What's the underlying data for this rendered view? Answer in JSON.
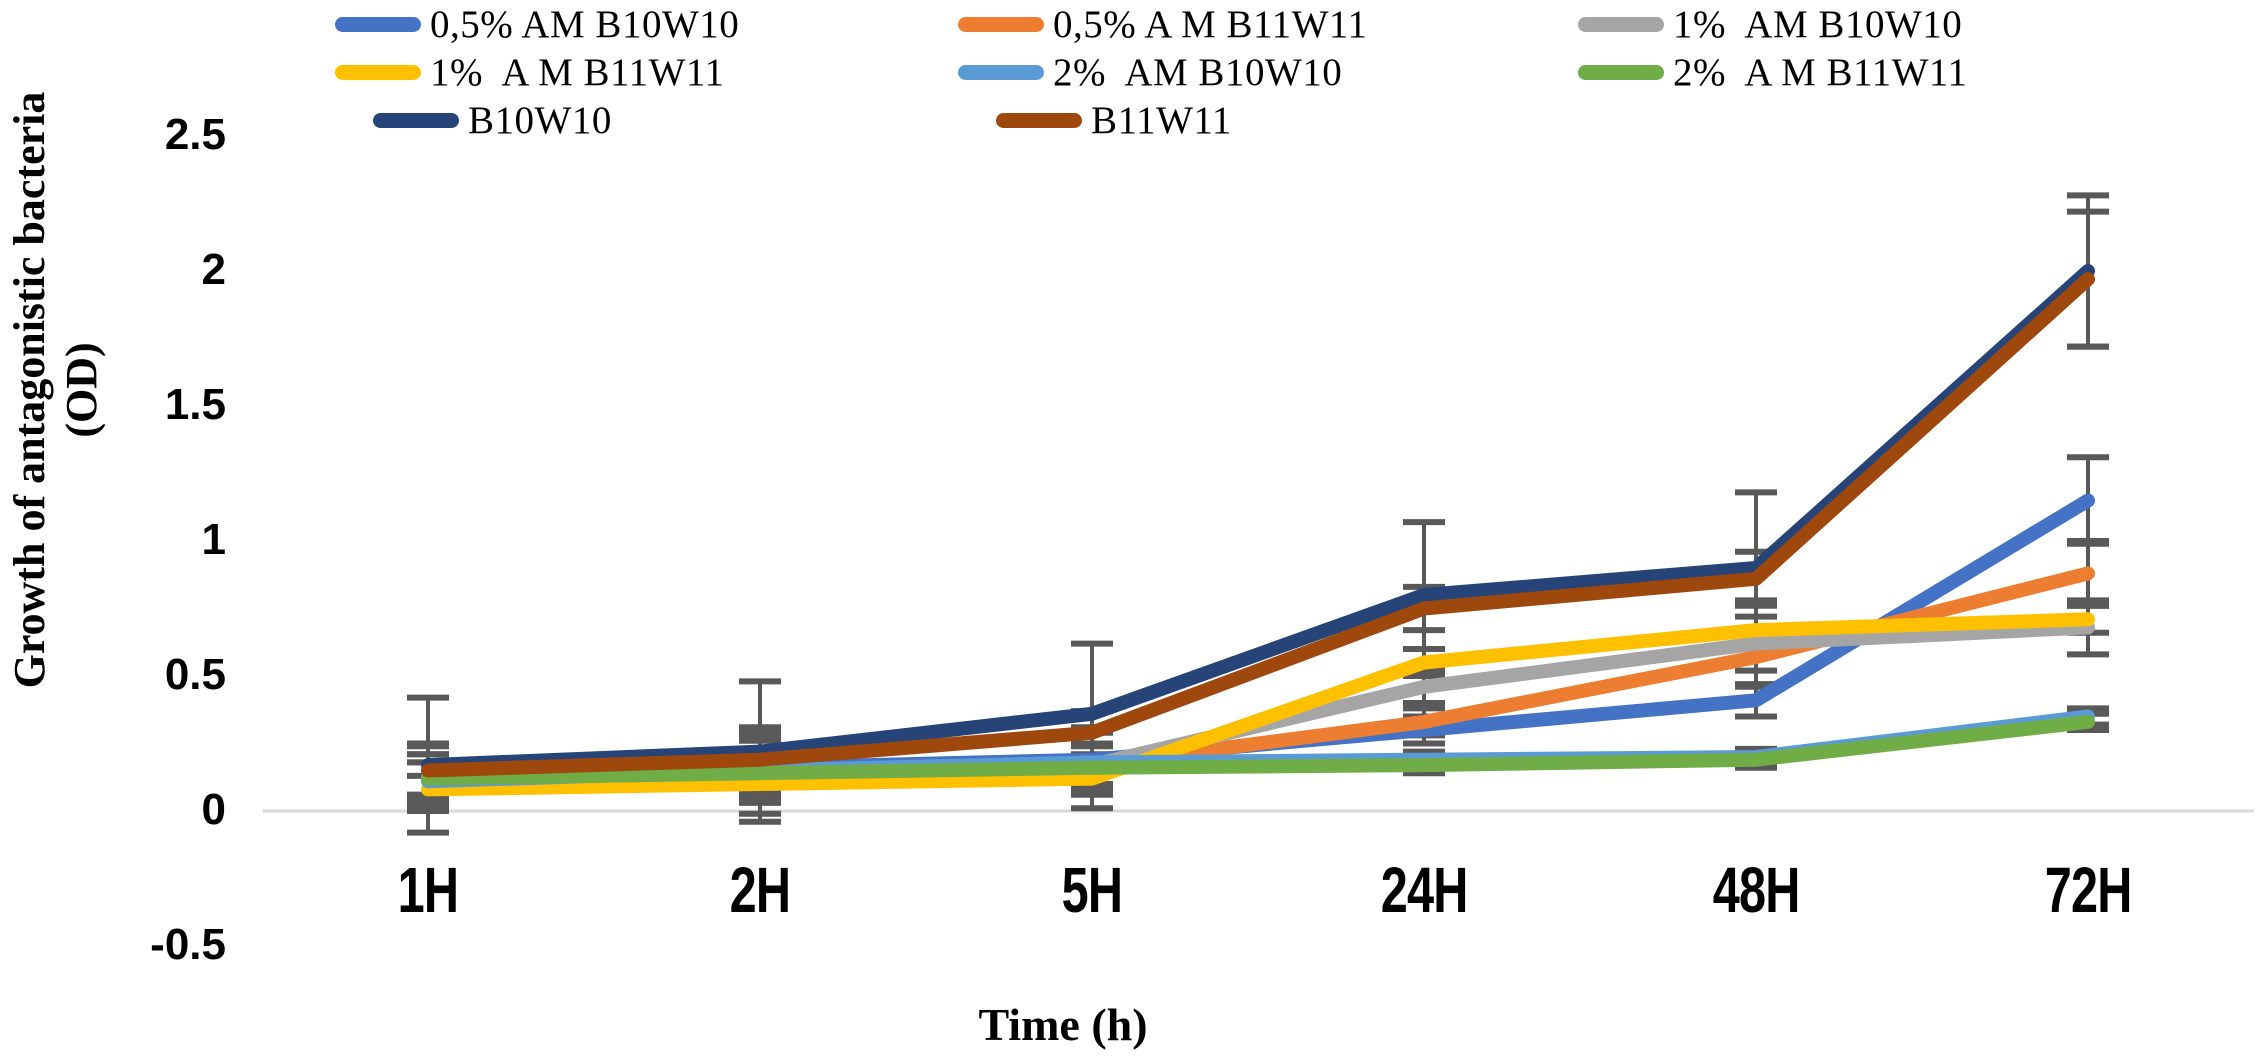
{
  "figure": {
    "y_axis_title_line1": "Growth of antagonistic bacteria",
    "y_axis_title_line2": "(OD)",
    "x_axis_title": "Time (h)"
  },
  "colors": {
    "background": "#FFFFFF",
    "zero_line": "#D9D9D9",
    "error_bar": "#595959",
    "text": "#000000"
  },
  "chart_data": {
    "type": "line",
    "title": "",
    "xlabel": "Time (h)",
    "ylabel": "Growth of antagonistic bacteria (OD)",
    "categories": [
      "1H",
      "2H",
      "5H",
      "24H",
      "48H",
      "72H"
    ],
    "x_values_hours": [
      1,
      2,
      5,
      24,
      48,
      72
    ],
    "ylim": [
      -0.5,
      2.5
    ],
    "y_ticks": [
      "2.5",
      "2",
      "1.5",
      "1",
      "0.5",
      "0",
      "-0.5"
    ],
    "y_tick_values": [
      2.5,
      2,
      1.5,
      1,
      0.5,
      0,
      -0.5
    ],
    "grid": false,
    "legend_position": "top",
    "legend_columns": 3,
    "error_bars": true,
    "series": [
      {
        "name": "0,5% AM B10W10",
        "color": "#4472C4",
        "values": [
          0.13,
          0.16,
          0.19,
          0.3,
          0.41,
          1.15
        ],
        "errors": [
          0.08,
          0.1,
          0.1,
          0.05,
          0.06,
          0.16
        ]
      },
      {
        "name": "0,5% A M B11W11",
        "color": "#ED7D31",
        "values": [
          0.12,
          0.14,
          0.17,
          0.33,
          0.57,
          0.88
        ],
        "errors": [
          0.06,
          0.08,
          0.08,
          0.05,
          0.05,
          0.12
        ]
      },
      {
        "name": "1%  AM B10W10",
        "color": "#A5A5A5",
        "values": [
          0.12,
          0.14,
          0.17,
          0.46,
          0.62,
          0.68
        ],
        "errors": [
          0.06,
          0.07,
          0.07,
          0.06,
          0.16,
          0.1
        ]
      },
      {
        "name": "1%  A M B11W11",
        "color": "#FFC000",
        "values": [
          0.08,
          0.1,
          0.12,
          0.55,
          0.67,
          0.71
        ],
        "errors": [
          0.05,
          0.06,
          0.05,
          0.05,
          0.05,
          0.05
        ]
      },
      {
        "name": "2%  AM B10W10",
        "color": "#5B9BD5",
        "values": [
          0.11,
          0.15,
          0.18,
          0.19,
          0.2,
          0.35
        ],
        "errors": [
          0.1,
          0.12,
          0.12,
          0.03,
          0.03,
          0.03
        ]
      },
      {
        "name": "2%  A M B11W11",
        "color": "#70AD47",
        "values": [
          0.12,
          0.14,
          0.16,
          0.17,
          0.19,
          0.33
        ],
        "errors": [
          0.12,
          0.15,
          0.15,
          0.03,
          0.03,
          0.03
        ]
      },
      {
        "name": "B10W10",
        "color": "#264478",
        "values": [
          0.17,
          0.22,
          0.36,
          0.8,
          0.9,
          2.0
        ],
        "errors": [
          0.25,
          0.26,
          0.26,
          0.27,
          0.28,
          0.28
        ]
      },
      {
        "name": "B11W11",
        "color": "#9E480E",
        "values": [
          0.15,
          0.19,
          0.29,
          0.75,
          0.86,
          1.97
        ],
        "errors": [
          0.1,
          0.12,
          0.08,
          0.08,
          0.1,
          0.25
        ]
      }
    ]
  }
}
